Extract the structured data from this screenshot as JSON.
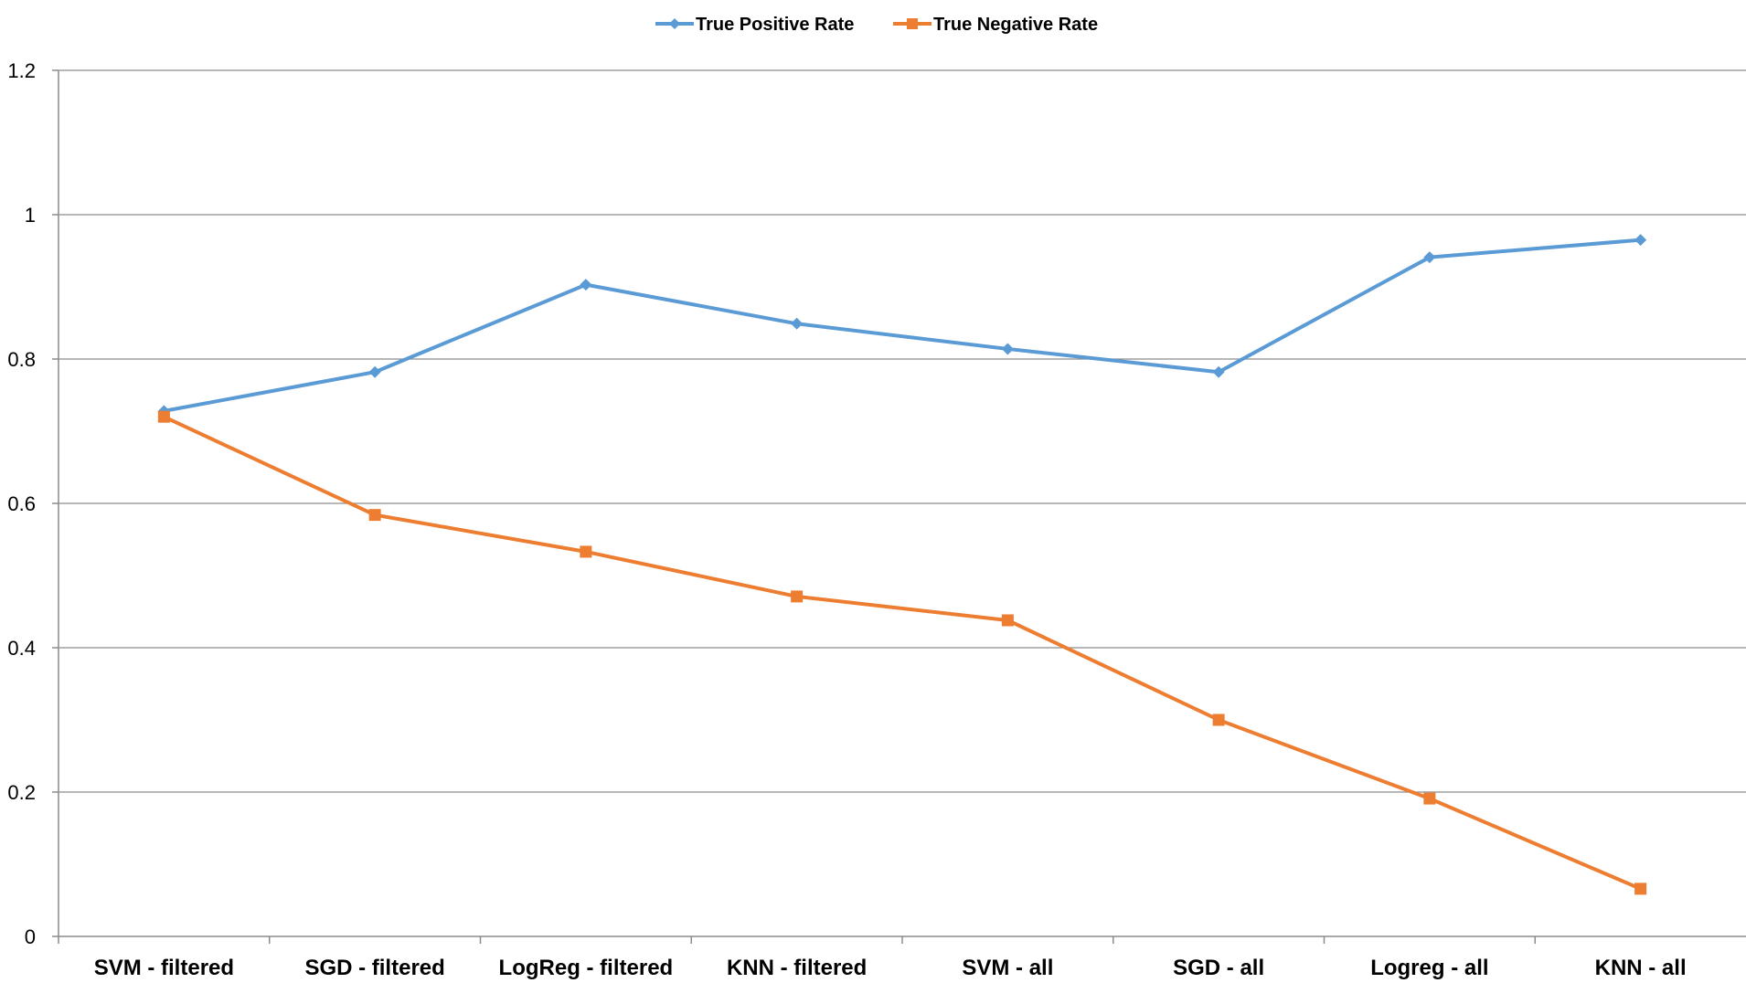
{
  "chart_data": {
    "type": "line",
    "title": "",
    "xlabel": "",
    "ylabel": "",
    "categories": [
      "SVM - filtered",
      "SGD - filtered",
      "LogReg - filtered",
      "KNN - filtered",
      "SVM - all",
      "SGD - all",
      "Logreg - all",
      "KNN - all"
    ],
    "series": [
      {
        "name": "True Positive Rate",
        "color": "#5B9BD5",
        "marker": "diamond",
        "values": [
          0.728,
          0.782,
          0.903,
          0.849,
          0.814,
          0.782,
          0.941,
          0.965
        ]
      },
      {
        "name": "True Negative Rate",
        "color": "#ED7D31",
        "marker": "square",
        "values": [
          0.72,
          0.584,
          0.533,
          0.471,
          0.438,
          0.3,
          0.191,
          0.066
        ]
      }
    ],
    "ylim": [
      0,
      1.2
    ],
    "yticks": [
      "0",
      "0.2",
      "0.4",
      "0.6",
      "0.8",
      "1",
      "1.2"
    ],
    "grid": "horizontal",
    "legend_position": "top-center"
  }
}
